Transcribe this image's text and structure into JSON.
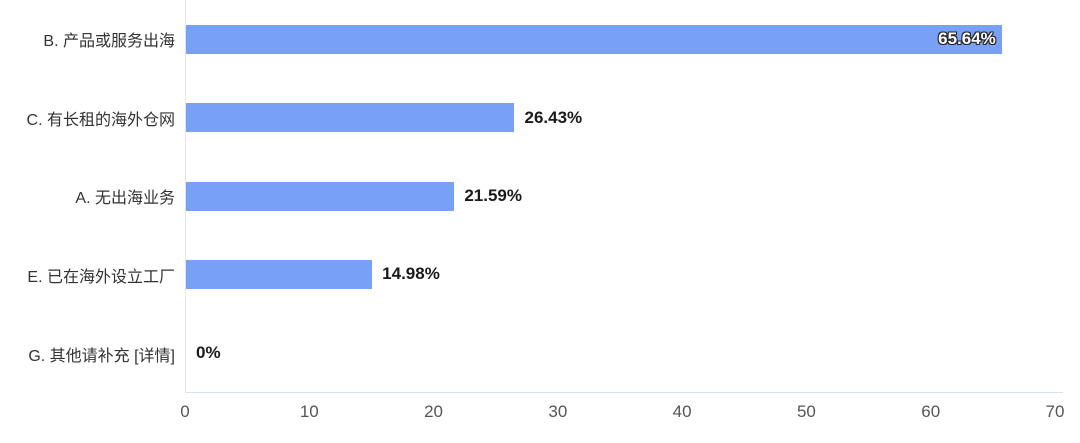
{
  "chart_data": {
    "type": "bar",
    "orientation": "horizontal",
    "title": "",
    "categories": [
      "B. 产品或服务出海",
      "C. 有长租的海外仓网",
      "A. 无出海业务",
      "E. 已在海外设立工厂",
      "G. 其他请补充 [详情]"
    ],
    "values": [
      65.64,
      26.43,
      21.59,
      14.98,
      0
    ],
    "value_labels": [
      "65.64%",
      "26.43%",
      "21.59%",
      "14.98%",
      "0%"
    ],
    "xlim": [
      0,
      70
    ],
    "tick_values": [
      0,
      10,
      20,
      30,
      40,
      50,
      60,
      70
    ],
    "ticks": [
      "0",
      "10",
      "20",
      "30",
      "40",
      "50",
      "60",
      "70"
    ],
    "grid": false,
    "legend": "none",
    "colors": {
      "bar": "#78a0f4",
      "axis_line": "#dfe6f2",
      "category_label": "#333333",
      "tick_label": "#555555",
      "value_label_dark": "#1a1a1a",
      "value_label_inside_fill": "#ffffff",
      "value_label_inside_outline": "#24262b"
    }
  }
}
